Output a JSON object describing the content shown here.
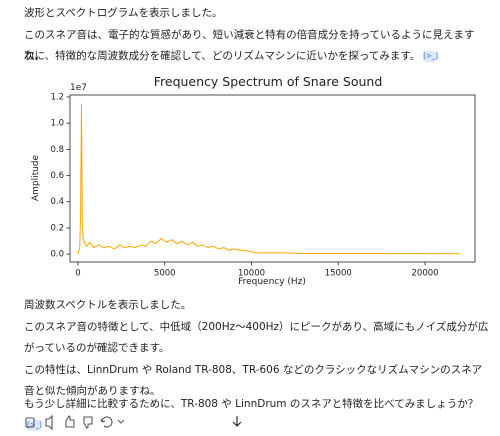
{
  "intro_lines": [
    "波形とスペクトログラムを表示しました。",
    "このスネア音は、電子的な質感があり、短い減衰と特有の倍音成分を持っているように見えますね。",
    "次に、特徴的な周波数成分を確認して、どのリズムマシンに近いかを探ってみます。"
  ],
  "chart_data": {
    "type": "line",
    "title": "Frequency Spectrum of Snare Sound",
    "x_label": "Frequency (Hz)",
    "y_label": "Amplitude",
    "y_offset_label": "1e7",
    "x": [
      0,
      100,
      150,
      200,
      250,
      300,
      400,
      500,
      700,
      900,
      1200,
      1500,
      1800,
      2100,
      2400,
      2700,
      3000,
      3300,
      3600,
      3900,
      4200,
      4500,
      4800,
      5100,
      5400,
      5700,
      6000,
      6300,
      6600,
      6900,
      7200,
      7500,
      7800,
      8100,
      8400,
      8700,
      9000,
      9300,
      9600,
      9900,
      10200,
      11000,
      12000,
      13000,
      14000,
      15000,
      16000,
      17000,
      18000,
      19000,
      20000,
      21000,
      22000
    ],
    "values": [
      0.0,
      0.05,
      0.3,
      1.15,
      0.25,
      0.12,
      0.08,
      0.06,
      0.09,
      0.05,
      0.07,
      0.05,
      0.06,
      0.04,
      0.07,
      0.05,
      0.06,
      0.05,
      0.07,
      0.06,
      0.1,
      0.08,
      0.12,
      0.09,
      0.11,
      0.08,
      0.1,
      0.07,
      0.09,
      0.06,
      0.07,
      0.05,
      0.06,
      0.04,
      0.05,
      0.03,
      0.04,
      0.03,
      0.03,
      0.02,
      0.01,
      0.01,
      0.01,
      0.005,
      0.005,
      0.005,
      0.005,
      0.005,
      0.004,
      0.004,
      0.004,
      0.003,
      0.003
    ],
    "color": "#ffa500",
    "xlim": [
      -460,
      22880
    ],
    "xticks": [
      0,
      5000,
      10000,
      15000,
      20000
    ],
    "ylim": [
      -0.06,
      1.215
    ],
    "yticks": [
      {
        "value": 0,
        "label": "0.0"
      },
      {
        "value": 0.2,
        "label": "0.2"
      },
      {
        "value": 0.4,
        "label": "0.4"
      },
      {
        "value": 0.6,
        "label": "0.6"
      },
      {
        "value": 0.8,
        "label": "0.8"
      },
      {
        "value": 1.0,
        "label": "1.0"
      },
      {
        "value": 1.2,
        "label": "1.2"
      }
    ]
  },
  "outro_lines": [
    "周波数スペクトルを表示しました。",
    "このスネア音の特徴として、中低域（200Hz〜400Hz）にピークがあり、高域にもノイズ成分が広がっているのが確認できます。",
    "この特性は、LinnDrum や Roland TR-808、TR-606 などのクラシックなリズムマシンのスネア音と似た傾向がありますね。",
    "もう少し詳細に比較するために、TR-808 や LinnDrum のスネアと特徴を比べてみましょうか？"
  ]
}
